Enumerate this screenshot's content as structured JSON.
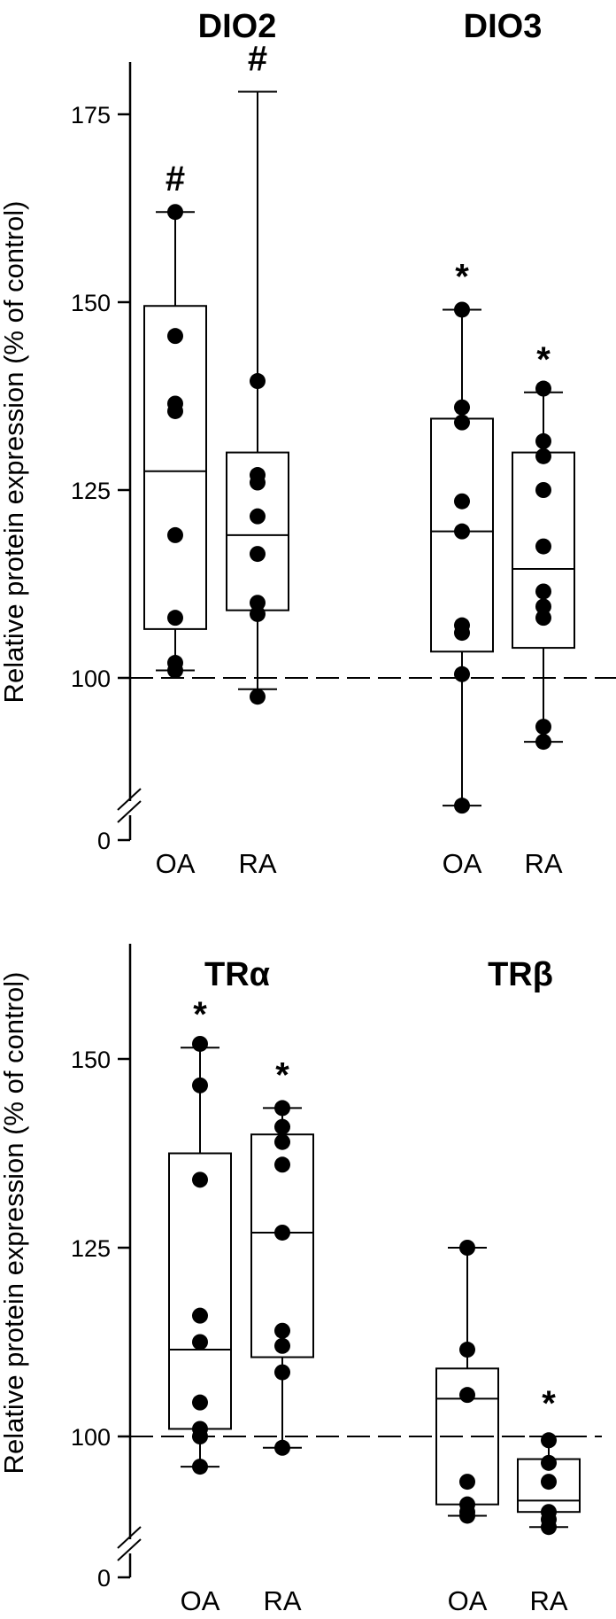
{
  "chart_data": [
    {
      "type": "box",
      "ylabel": "Relative protein expression (% of control)",
      "yticks": [
        0,
        100,
        125,
        150,
        175
      ],
      "axis_break": true,
      "reference_line": 100,
      "groups": [
        {
          "name": "DIO2",
          "boxes": [
            {
              "category": "OA",
              "significance": "#",
              "whisker_low": 101,
              "q1": 106.5,
              "median": 127.5,
              "q3": 149.5,
              "whisker_high": 162,
              "points": [
                162,
                145.5,
                136.5,
                135.5,
                119,
                108,
                102,
                101
              ]
            },
            {
              "category": "RA",
              "significance": "#",
              "whisker_low": 98.5,
              "q1": 109,
              "median": 119,
              "q3": 130,
              "whisker_high": 178,
              "points": [
                139.5,
                127,
                126,
                121.5,
                116.5,
                110,
                108.5,
                97.5
              ]
            }
          ]
        },
        {
          "name": "DIO3",
          "boxes": [
            {
              "category": "OA",
              "significance": "*",
              "whisker_low": 83,
              "q1": 103.5,
              "median": 119.5,
              "q3": 134.5,
              "whisker_high": 149,
              "points": [
                149,
                136,
                134,
                123.5,
                119.5,
                107,
                106,
                100.5,
                83
              ]
            },
            {
              "category": "RA",
              "significance": "*",
              "whisker_low": 91.5,
              "q1": 104,
              "median": 114.5,
              "q3": 130,
              "whisker_high": 138,
              "points": [
                138.5,
                131.5,
                129.5,
                125,
                117.5,
                111.5,
                109.5,
                108,
                93.5,
                91.5
              ]
            }
          ]
        }
      ]
    },
    {
      "type": "box",
      "ylabel": "Relative protein expression (% of control)",
      "yticks": [
        0,
        100,
        125,
        150
      ],
      "axis_break": true,
      "reference_line": 100,
      "groups": [
        {
          "name": "TRα",
          "boxes": [
            {
              "category": "OA",
              "significance": "*",
              "whisker_low": 96,
              "q1": 101,
              "median": 111.5,
              "q3": 137.5,
              "whisker_high": 151.5,
              "points": [
                152,
                146.5,
                134,
                116,
                112.5,
                104.5,
                101,
                100,
                96
              ]
            },
            {
              "category": "RA",
              "significance": "*",
              "whisker_low": 98.5,
              "q1": 110.5,
              "median": 127,
              "q3": 140,
              "whisker_high": 143.5,
              "points": [
                143.5,
                141,
                139,
                136,
                127,
                114,
                112,
                108.5,
                98.5
              ]
            }
          ]
        },
        {
          "name": "TRβ",
          "boxes": [
            {
              "category": "OA",
              "significance": "",
              "whisker_low": 89.5,
              "q1": 91,
              "median": 105,
              "q3": 109,
              "whisker_high": 125,
              "points": [
                125,
                111.5,
                105.5,
                94,
                91,
                90,
                89.5
              ]
            },
            {
              "category": "RA",
              "significance": "*",
              "whisker_low": 88,
              "q1": 90,
              "median": 91.5,
              "q3": 97,
              "whisker_high": 100,
              "points": [
                99.5,
                96.5,
                94,
                90,
                89,
                88
              ]
            }
          ]
        }
      ]
    }
  ]
}
